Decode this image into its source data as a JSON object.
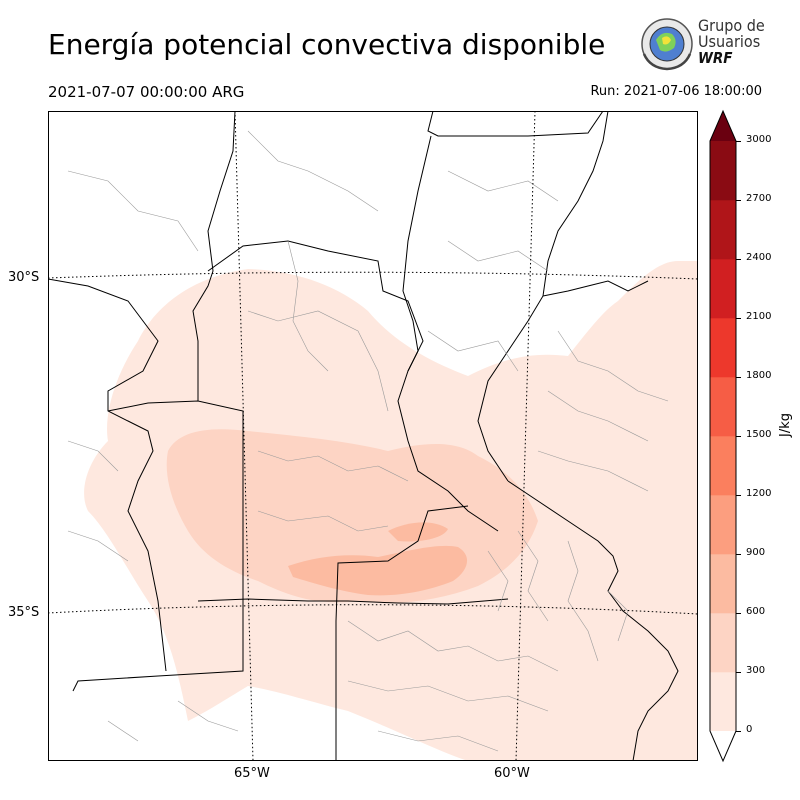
{
  "header": {
    "title": "Energía potencial convectiva disponible",
    "valid_time": "2021-07-07 00:00:00 ARG",
    "run_time": "Run: 2021-07-06 18:00:00"
  },
  "logo": {
    "line1": "Grupo de",
    "line2": "Usuarios",
    "line3": "WRF"
  },
  "map": {
    "lat_labels": [
      "30°S",
      "35°S"
    ],
    "lon_labels": [
      "65°W",
      "60°W"
    ]
  },
  "colorbar": {
    "unit": "J/kg",
    "ticks": [
      "0",
      "300",
      "600",
      "900",
      "1200",
      "1500",
      "1800",
      "2100",
      "2400",
      "2700",
      "3000"
    ],
    "colors": [
      "#fee8df",
      "#fdd4c4",
      "#fcbba1",
      "#fc9e7f",
      "#fb7f5e",
      "#f65d45",
      "#ed382c",
      "#d11f21",
      "#b01519",
      "#8a0b13"
    ],
    "under_color": "#ffffff",
    "over_color": "#6a0010"
  }
}
